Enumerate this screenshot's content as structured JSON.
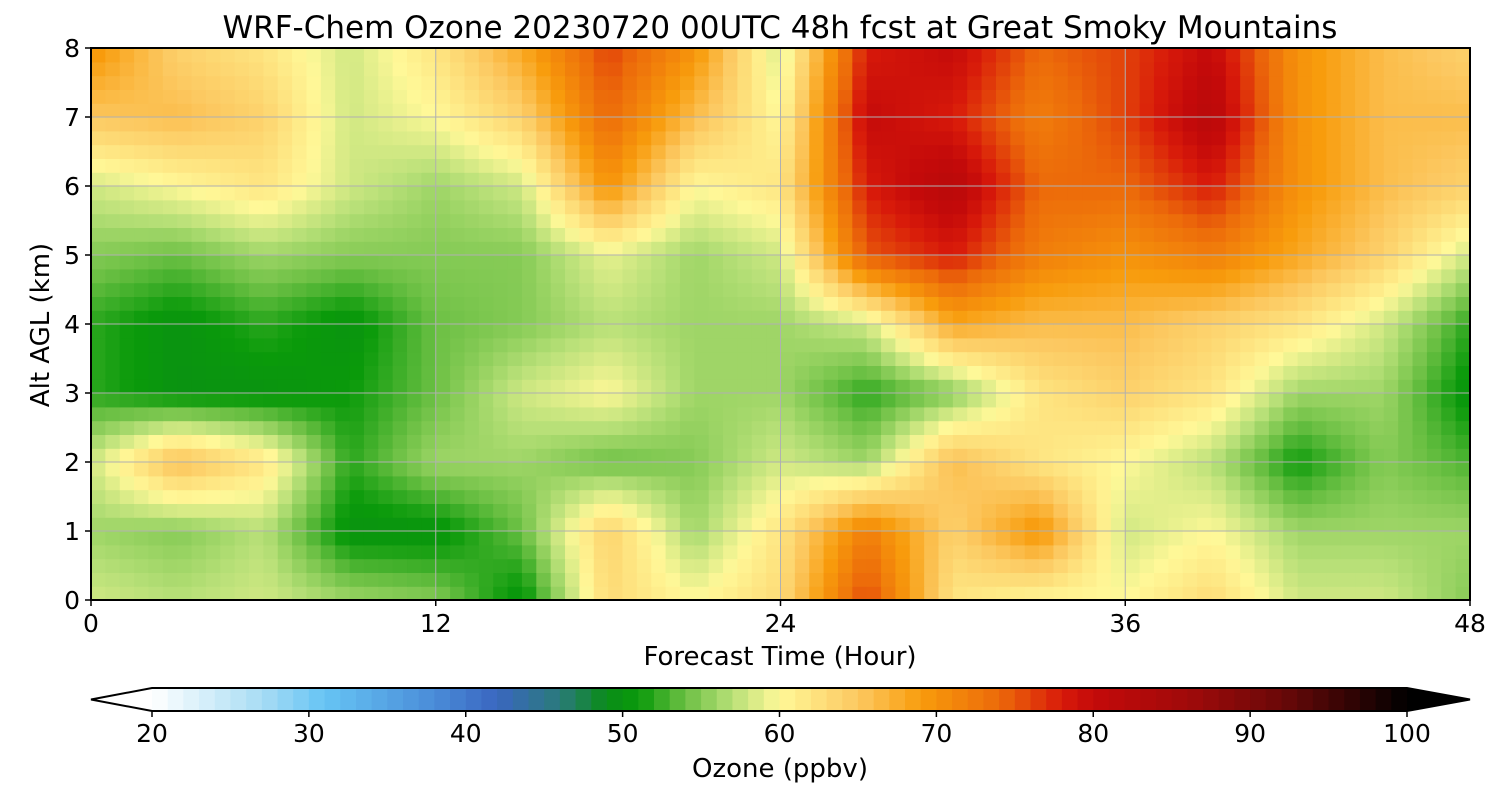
{
  "chart_data": {
    "type": "heatmap",
    "title": "WRF-Chem Ozone  20230720 00UTC 48h fcst at Great Smoky Mountains",
    "xlabel": "Forecast Time (Hour)",
    "ylabel": "Alt AGL (km)",
    "xlim": [
      0,
      48
    ],
    "ylim": [
      0,
      8
    ],
    "x_ticks": [
      "0",
      "12",
      "24",
      "36",
      "48"
    ],
    "y_ticks": [
      "0",
      "1",
      "2",
      "3",
      "4",
      "5",
      "6",
      "7",
      "8"
    ],
    "grid": true,
    "x": [
      0,
      3,
      6,
      9,
      12,
      15,
      18,
      21,
      24,
      27,
      30,
      33,
      36,
      39,
      42,
      45,
      48
    ],
    "y": [
      0,
      1,
      2,
      3,
      4,
      5,
      6,
      7,
      8
    ],
    "z_units": "ppbv",
    "z": [
      [
        58,
        57,
        58,
        56,
        55,
        50,
        63,
        60,
        63,
        76,
        62,
        60,
        60,
        63,
        58,
        58,
        55
      ],
      [
        56,
        55,
        57,
        50,
        50,
        54,
        64,
        56,
        62,
        72,
        64,
        70,
        58,
        60,
        56,
        56,
        56
      ],
      [
        58,
        66,
        62,
        52,
        56,
        56,
        54,
        55,
        58,
        56,
        66,
        62,
        60,
        57,
        51,
        55,
        53
      ],
      [
        52,
        50,
        50,
        51,
        54,
        58,
        60,
        56,
        56,
        52,
        55,
        62,
        64,
        62,
        56,
        56,
        50
      ],
      [
        52,
        50,
        52,
        50,
        54,
        55,
        57,
        56,
        56,
        58,
        68,
        66,
        66,
        64,
        62,
        58,
        52
      ],
      [
        55,
        54,
        56,
        55,
        55,
        55,
        59,
        56,
        58,
        75,
        78,
        72,
        70,
        72,
        68,
        64,
        58
      ],
      [
        58,
        60,
        62,
        58,
        56,
        58,
        70,
        60,
        62,
        78,
        82,
        74,
        74,
        78,
        70,
        66,
        64
      ],
      [
        65,
        66,
        64,
        58,
        60,
        64,
        74,
        66,
        60,
        80,
        78,
        72,
        76,
        82,
        70,
        66,
        66
      ],
      [
        70,
        64,
        62,
        58,
        62,
        68,
        76,
        70,
        58,
        78,
        80,
        74,
        76,
        80,
        70,
        66,
        64
      ]
    ]
  },
  "colorbar": {
    "label": "Ozone  (ppbv)",
    "min": 20,
    "max": 100,
    "ticks": [
      "20",
      "30",
      "40",
      "50",
      "60",
      "70",
      "80",
      "90",
      "100"
    ],
    "extend": "both",
    "stops": [
      {
        "v": 20,
        "c": "#ffffff"
      },
      {
        "v": 27,
        "c": "#a8dcf4"
      },
      {
        "v": 31,
        "c": "#66c4f4"
      },
      {
        "v": 38,
        "c": "#4a8cd8"
      },
      {
        "v": 42,
        "c": "#3a66c0"
      },
      {
        "v": 46,
        "c": "#2a7a7a"
      },
      {
        "v": 49,
        "c": "#0a8c18"
      },
      {
        "v": 51,
        "c": "#0a9a0a"
      },
      {
        "v": 54,
        "c": "#6cc044"
      },
      {
        "v": 57,
        "c": "#b8e078"
      },
      {
        "v": 60,
        "c": "#fff898"
      },
      {
        "v": 65,
        "c": "#fcc860"
      },
      {
        "v": 69,
        "c": "#f89c0c"
      },
      {
        "v": 74,
        "c": "#ec6a0a"
      },
      {
        "v": 78,
        "c": "#d81a0a"
      },
      {
        "v": 80,
        "c": "#c40a0a"
      },
      {
        "v": 86,
        "c": "#a00a0a"
      },
      {
        "v": 92,
        "c": "#6a0808"
      },
      {
        "v": 97,
        "c": "#2a0404"
      },
      {
        "v": 100,
        "c": "#000000"
      }
    ]
  }
}
